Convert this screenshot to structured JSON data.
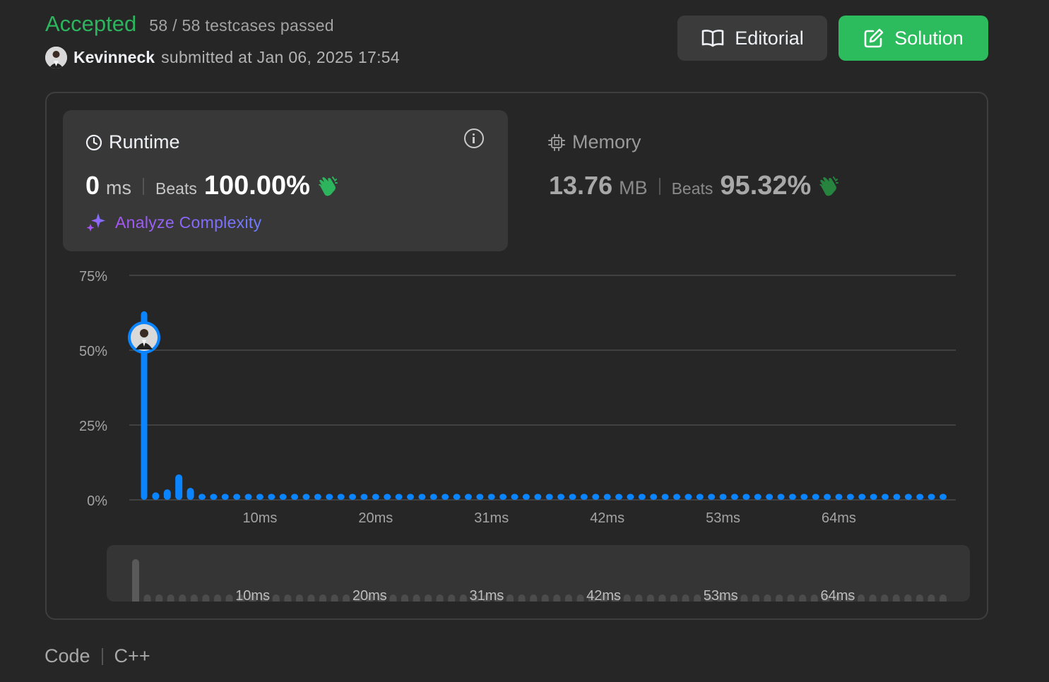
{
  "header": {
    "status": "Accepted",
    "testcases": "58 / 58 testcases passed",
    "username": "Kevinneck",
    "submitted_text": "submitted at Jan 06, 2025 17:54"
  },
  "buttons": {
    "editorial": "Editorial",
    "solution": "Solution"
  },
  "runtime": {
    "title": "Runtime",
    "value": "0",
    "unit": "ms",
    "beats_label": "Beats",
    "beats": "100.00%",
    "analyze": "Analyze Complexity"
  },
  "memory": {
    "title": "Memory",
    "value": "13.76",
    "unit": "MB",
    "beats_label": "Beats",
    "beats": "95.32%"
  },
  "code": {
    "label": "Code",
    "language": "C++"
  },
  "colors": {
    "accepted": "#2db55d",
    "bar": "#0a84ff",
    "solution_button": "#2cbb5d"
  },
  "chart_data": {
    "type": "bar",
    "title": "",
    "xlabel": "",
    "ylabel": "",
    "ylim": [
      0,
      75
    ],
    "y_ticks": [
      "0%",
      "25%",
      "50%",
      "75%"
    ],
    "x_tick_labels": [
      "10ms",
      "20ms",
      "31ms",
      "42ms",
      "53ms",
      "64ms"
    ],
    "grid": true,
    "marker_bar_index": 0,
    "values": [
      63,
      2.5,
      3.5,
      8.5,
      4,
      2,
      2,
      2,
      2,
      2,
      2,
      2,
      2,
      2,
      2,
      2,
      2,
      2,
      2,
      2,
      2,
      2,
      2,
      2,
      2,
      2,
      2,
      2,
      2,
      2,
      2,
      2,
      2,
      2,
      2,
      2,
      2,
      2,
      2,
      2,
      2,
      2,
      2,
      2,
      2,
      2,
      2,
      2,
      2,
      2,
      2,
      2,
      2,
      2,
      2,
      2,
      2,
      2,
      2,
      2,
      2,
      2,
      2,
      2,
      2,
      2,
      2,
      2,
      2,
      2
    ]
  }
}
